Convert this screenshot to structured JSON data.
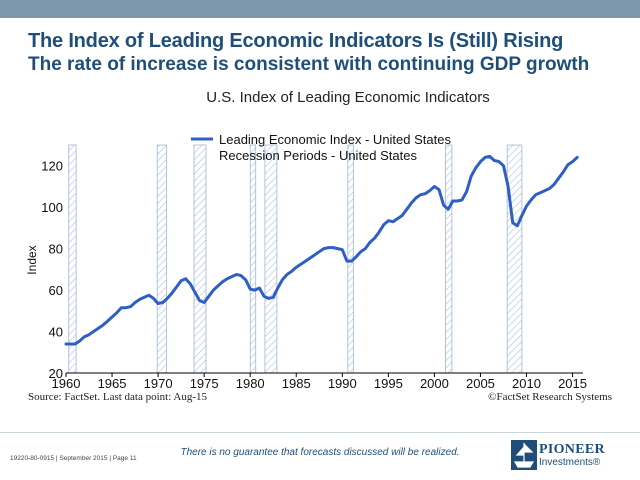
{
  "slide": {
    "title": "The Index of Leading Economic Indicators Is (Still) Rising",
    "subtitle": "The rate of increase is consistent with continuing GDP growth",
    "source": "Source: FactSet. Last data point: Aug-15",
    "copyright": "©FactSet Research Systems",
    "disclaimer": "There is no guarantee that forecasts discussed will be realized.",
    "footer_id": "19220-80-0915",
    "footer_date": "September 2015",
    "footer_page": "Page 11",
    "footer_sep": "|",
    "logo_name": "PIONEER",
    "logo_sub": "Investments",
    "logo_reg": "®",
    "colors": {
      "title": "#1f4e79",
      "top_band": "#7d98ad",
      "series": "#2f5fc6",
      "recession": "#9fb4dd"
    }
  },
  "chart_data": {
    "type": "line",
    "title": "U.S. Index of Leading Economic Indicators",
    "xlabel": "",
    "ylabel": "Index",
    "xlim": [
      1960,
      2015.7
    ],
    "ylim": [
      20,
      130
    ],
    "x_ticks": [
      1960,
      1965,
      1970,
      1975,
      1980,
      1985,
      1990,
      1995,
      2000,
      2005,
      2010,
      2015
    ],
    "y_ticks": [
      20,
      40,
      60,
      80,
      100,
      120
    ],
    "grid": false,
    "legend_position": "top",
    "series": [
      {
        "name": "Leading Economic Index - United States",
        "x": [
          1960,
          1960.5,
          1961,
          1961.5,
          1962,
          1962.5,
          1963,
          1963.5,
          1964,
          1964.5,
          1965,
          1965.5,
          1966,
          1966.5,
          1967,
          1967.5,
          1968,
          1968.5,
          1969,
          1969.5,
          1970,
          1970.5,
          1971,
          1971.5,
          1972,
          1972.5,
          1973,
          1973.5,
          1974,
          1974.5,
          1975,
          1975.5,
          1976,
          1976.5,
          1977,
          1977.5,
          1978,
          1978.5,
          1979,
          1979.5,
          1980,
          1980.5,
          1981,
          1981.5,
          1982,
          1982.5,
          1983,
          1983.5,
          1984,
          1984.5,
          1985,
          1985.5,
          1986,
          1986.5,
          1987,
          1987.5,
          1988,
          1988.5,
          1989,
          1989.5,
          1990,
          1990.5,
          1991,
          1991.5,
          1992,
          1992.5,
          1993,
          1993.5,
          1994,
          1994.5,
          1995,
          1995.5,
          1996,
          1996.5,
          1997,
          1997.5,
          1998,
          1998.5,
          1999,
          1999.5,
          2000,
          2000.5,
          2001,
          2001.5,
          2002,
          2002.5,
          2003,
          2003.5,
          2004,
          2004.5,
          2005,
          2005.5,
          2006,
          2006.5,
          2007,
          2007.5,
          2008,
          2008.5,
          2009,
          2009.5,
          2010,
          2010.5,
          2011,
          2011.5,
          2012,
          2012.5,
          2013,
          2013.5,
          2014,
          2014.5,
          2015,
          2015.5
        ],
        "values": [
          34,
          34,
          34,
          35.5,
          37.5,
          38.5,
          40,
          41.5,
          43,
          45,
          47,
          49,
          51.5,
          51.5,
          52,
          54,
          55.5,
          56.5,
          57.5,
          56,
          53.5,
          54,
          56,
          58.5,
          61.5,
          64.5,
          65.5,
          63,
          59,
          55,
          54,
          57,
          60,
          62,
          64,
          65.5,
          66.5,
          67.5,
          67,
          65,
          60.5,
          60,
          61,
          57,
          56,
          56.5,
          61,
          65,
          67.5,
          69,
          71,
          72.5,
          74,
          75.5,
          77,
          78.5,
          80,
          80.5,
          80.5,
          80,
          79.5,
          74,
          74,
          76,
          78.5,
          80,
          83,
          85,
          88,
          91.5,
          93.5,
          93,
          94.5,
          96,
          99,
          102,
          104.5,
          106,
          106.5,
          108,
          110,
          108.5,
          101,
          99,
          103,
          103,
          103.5,
          107.5,
          115,
          119,
          122,
          124,
          124.5,
          122.5,
          122,
          120,
          110,
          92.5,
          91,
          96,
          100.5,
          103.5,
          106,
          107,
          108,
          109,
          111,
          114,
          117,
          120.5,
          122,
          124
        ]
      },
      {
        "name": "Recession Periods - United States",
        "type": "shaded_ranges",
        "ranges": [
          [
            1960.3,
            1961.1
          ],
          [
            1969.9,
            1970.9
          ],
          [
            1973.9,
            1975.2
          ],
          [
            1980.0,
            1980.6
          ],
          [
            1981.6,
            1982.9
          ],
          [
            1990.6,
            1991.2
          ],
          [
            2001.2,
            2001.9
          ],
          [
            2007.9,
            2009.5
          ]
        ]
      }
    ]
  }
}
